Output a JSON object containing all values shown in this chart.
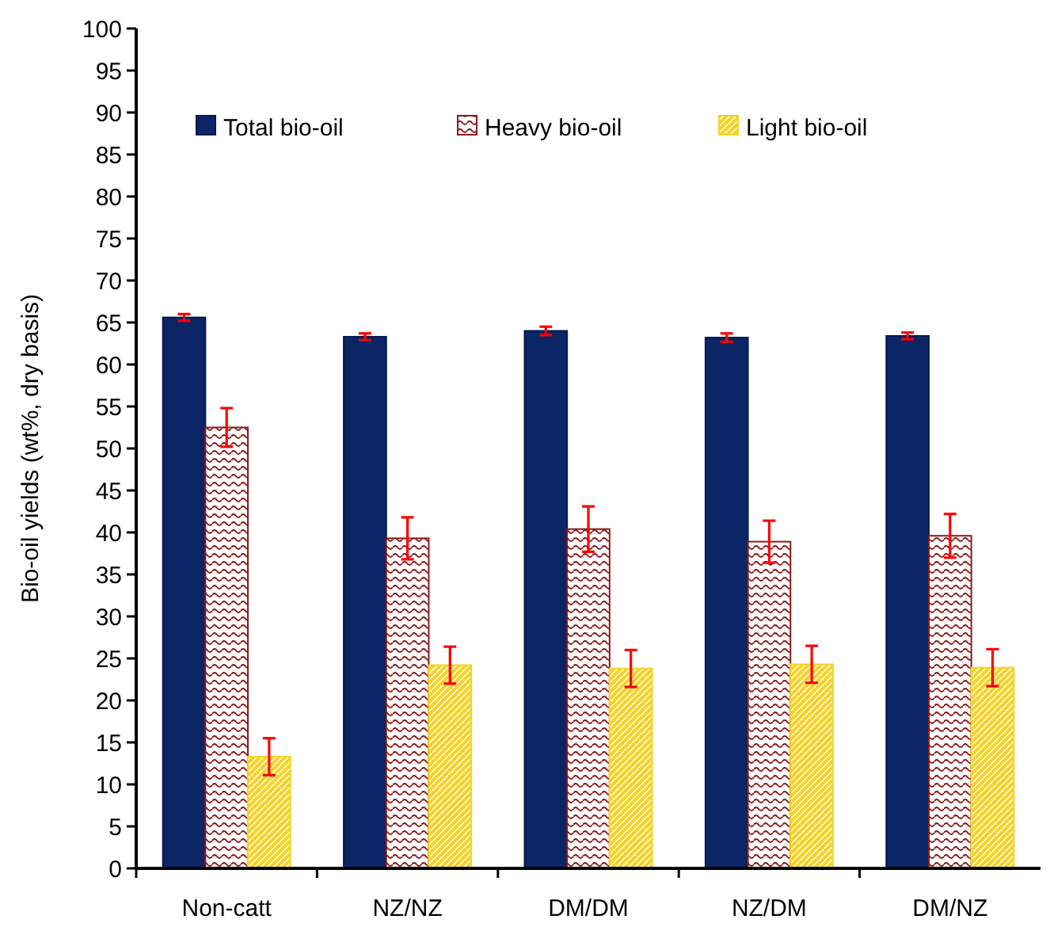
{
  "chart_data": {
    "type": "bar",
    "ylabel": "Bio-oil yields (wt%, dry basis)",
    "categories": [
      "Non-catt",
      "NZ/NZ",
      "DM/DM",
      "NZ/DM",
      "DM/NZ"
    ],
    "series": [
      {
        "name": "Total bio-oil",
        "color": "#0b2566",
        "values": [
          65.6,
          63.3,
          64.0,
          63.2,
          63.4
        ],
        "errors": [
          0.4,
          0.4,
          0.5,
          0.5,
          0.4
        ]
      },
      {
        "name": "Heavy bio-oil",
        "color": "#8b1a1a",
        "values": [
          52.5,
          39.3,
          40.4,
          38.9,
          39.6
        ],
        "errors": [
          2.3,
          2.5,
          2.7,
          2.5,
          2.6
        ]
      },
      {
        "name": "Light bio-oil",
        "color": "#f5d327",
        "values": [
          13.3,
          24.2,
          23.8,
          24.3,
          23.9
        ],
        "errors": [
          2.2,
          2.2,
          2.2,
          2.2,
          2.2
        ]
      }
    ],
    "ylim": [
      0,
      100
    ],
    "yticks": [
      0,
      5,
      10,
      15,
      20,
      25,
      30,
      35,
      40,
      45,
      50,
      55,
      60,
      65,
      70,
      75,
      80,
      85,
      90,
      95,
      100
    ],
    "grid": false,
    "legend": "top"
  }
}
